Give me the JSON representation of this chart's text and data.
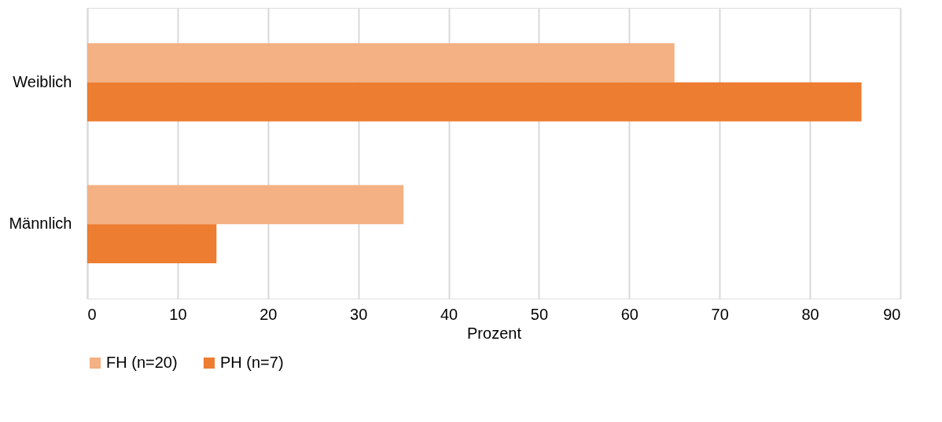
{
  "chart_data": {
    "type": "bar",
    "orientation": "horizontal",
    "xlabel": "Prozent",
    "categories": [
      "Weiblich",
      "Männlich"
    ],
    "series": [
      {
        "name": "FH (n=20)",
        "color": "#f4b183",
        "values": [
          65,
          35
        ]
      },
      {
        "name": "PH (n=7)",
        "color": "#ed7d31",
        "values": [
          85.7,
          14.3
        ]
      }
    ],
    "xlim": [
      0,
      90
    ],
    "xticks": [
      0,
      10,
      20,
      30,
      40,
      50,
      60,
      70,
      80,
      90
    ],
    "grid": "x",
    "legend": "bottom"
  }
}
